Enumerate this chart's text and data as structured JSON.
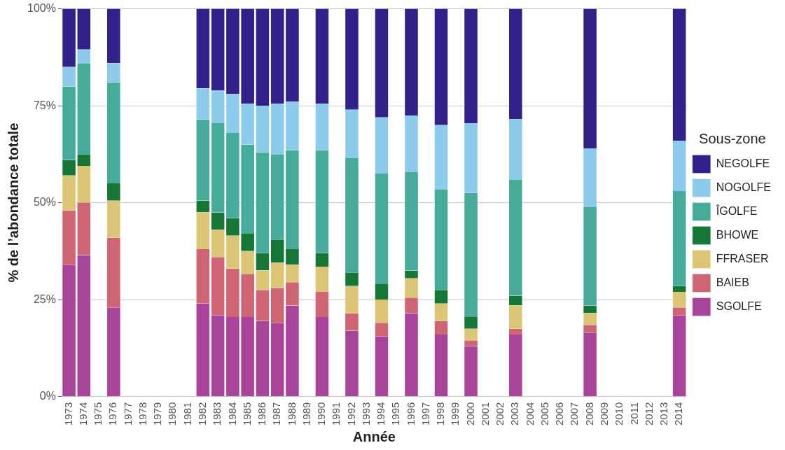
{
  "chart_data": {
    "type": "bar",
    "stacked": true,
    "xlabel": "Année",
    "ylabel": "% de l’abondance totale",
    "legend_title": "Sous-zone",
    "legend": "right",
    "grid": "y",
    "categories": [
      "1973",
      "1974",
      "1975",
      "1976",
      "1977",
      "1978",
      "1979",
      "1980",
      "1981",
      "1982",
      "1983",
      "1984",
      "1985",
      "1986",
      "1987",
      "1988",
      "1989",
      "1990",
      "1991",
      "1992",
      "1993",
      "1994",
      "1995",
      "1996",
      "1997",
      "1998",
      "1999",
      "2000",
      "2001",
      "2002",
      "2003",
      "2004",
      "2005",
      "2006",
      "2007",
      "2008",
      "2009",
      "2010",
      "2011",
      "2012",
      "2013",
      "2014"
    ],
    "ylim": [
      0,
      100
    ],
    "yticks": [
      {
        "value": 0,
        "label": "0%"
      },
      {
        "value": 25,
        "label": "25%"
      },
      {
        "value": 50,
        "label": "50%"
      },
      {
        "value": 75,
        "label": "75%"
      },
      {
        "value": 100,
        "label": "100%"
      }
    ],
    "series": [
      {
        "name": "SGOLFE",
        "color": "#a8449a",
        "values": [
          34,
          36.5,
          null,
          23,
          null,
          null,
          null,
          null,
          null,
          24,
          21,
          20.5,
          20.5,
          19.5,
          19,
          23.5,
          null,
          20.5,
          null,
          17,
          null,
          15.5,
          null,
          21.5,
          null,
          16,
          null,
          13,
          null,
          null,
          16,
          null,
          null,
          null,
          null,
          16.5,
          null,
          null,
          null,
          null,
          null,
          21
        ]
      },
      {
        "name": "BAIEB",
        "color": "#cf6473",
        "values": [
          14,
          13.5,
          null,
          18,
          null,
          null,
          null,
          null,
          null,
          14,
          15,
          12.5,
          11,
          8,
          9,
          6,
          null,
          6.5,
          null,
          4.5,
          null,
          3.5,
          null,
          4,
          null,
          3.5,
          null,
          1.5,
          null,
          null,
          1.5,
          null,
          null,
          null,
          null,
          2,
          null,
          null,
          null,
          null,
          null,
          2
        ]
      },
      {
        "name": "FFRASER",
        "color": "#dcc675",
        "values": [
          9,
          9.5,
          null,
          9.5,
          null,
          null,
          null,
          null,
          null,
          9.5,
          7,
          8.5,
          6,
          5,
          6.5,
          4.5,
          null,
          6.5,
          null,
          7,
          null,
          6,
          null,
          5,
          null,
          4.5,
          null,
          3,
          null,
          null,
          6,
          null,
          null,
          null,
          null,
          3,
          null,
          null,
          null,
          null,
          null,
          4
        ]
      },
      {
        "name": "BHOWE",
        "color": "#157635",
        "values": [
          4,
          3,
          null,
          4.5,
          null,
          null,
          null,
          null,
          null,
          3,
          4.5,
          4.5,
          4.5,
          4.5,
          6,
          4,
          null,
          3.5,
          null,
          3.5,
          null,
          4,
          null,
          2,
          null,
          3.5,
          null,
          3,
          null,
          null,
          2.5,
          null,
          null,
          null,
          null,
          2,
          null,
          null,
          null,
          null,
          null,
          1.5
        ]
      },
      {
        "name": "ÎGOLFE",
        "color": "#47ab9c",
        "values": [
          19,
          23.5,
          null,
          26,
          null,
          null,
          null,
          null,
          null,
          21,
          23,
          22,
          23,
          26,
          22,
          25.5,
          null,
          26.5,
          null,
          29.5,
          null,
          28.5,
          null,
          25.5,
          null,
          26,
          null,
          32,
          null,
          null,
          30,
          null,
          null,
          null,
          null,
          25.5,
          null,
          null,
          null,
          null,
          null,
          24.5
        ]
      },
      {
        "name": "NOGOLFE",
        "color": "#8ccbec",
        "values": [
          5,
          3.5,
          null,
          5,
          null,
          null,
          null,
          null,
          null,
          8,
          8.5,
          10,
          10.5,
          12,
          13,
          12.5,
          null,
          12,
          null,
          12.5,
          null,
          14.5,
          null,
          14.5,
          null,
          16.5,
          null,
          18,
          null,
          null,
          15.5,
          null,
          null,
          null,
          null,
          15,
          null,
          null,
          null,
          null,
          null,
          13
        ]
      },
      {
        "name": "NEGOLFE",
        "color": "#31218a",
        "values": [
          15,
          10.5,
          null,
          14,
          null,
          null,
          null,
          null,
          null,
          20.5,
          21,
          22,
          24.5,
          25,
          24.5,
          24,
          null,
          24.5,
          null,
          26,
          null,
          28,
          null,
          27.5,
          null,
          30,
          null,
          29.5,
          null,
          null,
          28.5,
          null,
          null,
          null,
          null,
          36,
          null,
          null,
          null,
          null,
          null,
          34
        ]
      }
    ]
  }
}
